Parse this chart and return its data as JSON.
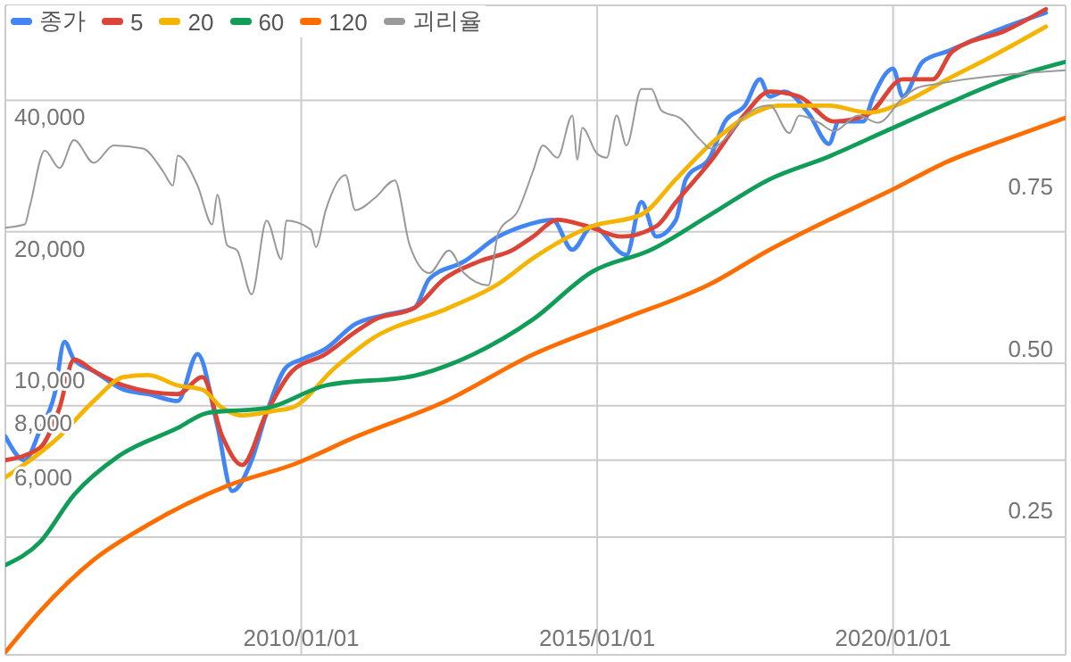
{
  "chart_data": {
    "type": "line",
    "log": "y",
    "grid": true,
    "legend": "top left",
    "marker": "none",
    "line_style": "solid",
    "xlim": [
      "2005-01-01",
      "2022-12-01"
    ],
    "xticks": [
      {
        "value": "2005-01-01",
        "label": null
      },
      {
        "value": "2010-01-01",
        "label": "2010/01/01"
      },
      {
        "value": "2015-01-01",
        "label": "2015/01/01"
      },
      {
        "value": "2020-01-01",
        "label": "2020/01/01"
      }
    ],
    "ylim": [
      2150,
      66000
    ],
    "yticks": [
      {
        "value": 4000,
        "label": null
      },
      {
        "value": 6000,
        "label": "6,000"
      },
      {
        "value": 8000,
        "label": "8,000"
      },
      {
        "value": 10000,
        "label": "10,000"
      },
      {
        "value": 20000,
        "label": "20,000"
      },
      {
        "value": 40000,
        "label": "40,000"
      }
    ],
    "y2lim": [
      0.026,
      1.028
    ],
    "y2ticks": [
      {
        "value": 0.25,
        "label": "0.25"
      },
      {
        "value": 0.5,
        "label": "0.50"
      },
      {
        "value": 0.75,
        "label": "0.75"
      }
    ],
    "series": [
      {
        "name": "종가",
        "color": "#4285f4",
        "x": [
          "2005-01",
          "2005-05",
          "2005-08",
          "2005-11",
          "2006-01",
          "2006-03",
          "2006-07",
          "2007-01",
          "2007-06",
          "2007-12",
          "2008-04",
          "2008-08",
          "2008-11",
          "2009-03",
          "2009-06",
          "2009-10",
          "2010-01",
          "2010-06",
          "2010-12",
          "2011-06",
          "2011-12",
          "2012-03",
          "2012-10",
          "2013-05",
          "2013-10",
          "2014-04",
          "2014-08",
          "2014-12",
          "2015-07",
          "2015-10",
          "2016-01",
          "2016-05",
          "2016-07",
          "2016-12",
          "2017-03",
          "2017-07",
          "2017-10",
          "2017-12",
          "2018-03",
          "2018-08",
          "2018-12",
          "2019-02",
          "2019-07",
          "2019-09",
          "2020-01",
          "2020-03",
          "2020-07",
          "2020-12",
          "2021-12",
          "2022-08"
        ],
        "values": [
          6800,
          6000,
          7000,
          8500,
          11200,
          10200,
          9600,
          8700,
          8500,
          8200,
          10500,
          7200,
          5100,
          6000,
          7700,
          9800,
          10200,
          10800,
          12300,
          12900,
          13400,
          15600,
          17100,
          19500,
          20600,
          21300,
          18200,
          20600,
          17700,
          23400,
          19500,
          21300,
          26400,
          29800,
          35800,
          38900,
          44700,
          40800,
          41900,
          37200,
          31800,
          35800,
          35800,
          40800,
          47300,
          40800,
          49000,
          51800,
          59000,
          63500
        ]
      },
      {
        "name": "5",
        "color": "#db4437",
        "x": [
          "2005-01",
          "2005-08",
          "2005-12",
          "2006-03",
          "2006-07",
          "2007-01",
          "2007-12",
          "2008-05",
          "2008-09",
          "2009-01",
          "2009-06",
          "2009-11",
          "2010-06",
          "2010-12",
          "2011-04",
          "2011-12",
          "2012-06",
          "2013-01",
          "2013-08",
          "2013-12",
          "2014-05",
          "2014-11",
          "2015-06",
          "2016-01",
          "2016-05",
          "2016-12",
          "2017-07",
          "2017-12",
          "2018-06",
          "2019-01",
          "2019-08",
          "2020-03",
          "2020-09",
          "2021-01",
          "2021-12",
          "2022-08"
        ],
        "values": [
          6000,
          6400,
          7900,
          10200,
          9600,
          8900,
          8500,
          9300,
          6800,
          5850,
          7700,
          9550,
          10500,
          11800,
          12600,
          13400,
          15600,
          17100,
          18200,
          19500,
          21300,
          20600,
          19500,
          20600,
          23400,
          29000,
          37200,
          41900,
          40800,
          35800,
          37200,
          44700,
          44700,
          51800,
          57900,
          64700
        ]
      },
      {
        "name": "20",
        "color": "#f4b400",
        "x": [
          "2005-01",
          "2005-12",
          "2006-07",
          "2007-01",
          "2007-06",
          "2007-12",
          "2008-05",
          "2008-09",
          "2009-01",
          "2009-08",
          "2009-11",
          "2010-08",
          "2011-03",
          "2012-07",
          "2013-05",
          "2013-12",
          "2014-12",
          "2015-10",
          "2016-05",
          "2016-12",
          "2017-07",
          "2018-02",
          "2018-12",
          "2019-08",
          "2020-04",
          "2020-12",
          "2021-09",
          "2022-08"
        ],
        "values": [
          5480,
          6800,
          8200,
          9300,
          9400,
          8900,
          8700,
          7900,
          7600,
          7800,
          7900,
          9800,
          11300,
          13400,
          15200,
          17400,
          20600,
          21900,
          26400,
          31750,
          36500,
          38900,
          38900,
          37500,
          40000,
          44700,
          50400,
          59000
        ]
      },
      {
        "name": "60",
        "color": "#0f9d58",
        "x": [
          "2005-01",
          "2005-08",
          "2006-03",
          "2006-12",
          "2007-12",
          "2008-06",
          "2009-06",
          "2010-06",
          "2011-12",
          "2012-12",
          "2013-12",
          "2014-12",
          "2015-12",
          "2016-12",
          "2017-12",
          "2018-12",
          "2019-12",
          "2020-12",
          "2021-12",
          "2022-12"
        ],
        "values": [
          3450,
          3890,
          5000,
          6130,
          7110,
          7700,
          7900,
          8900,
          9370,
          10500,
          12600,
          16200,
          18200,
          21900,
          26400,
          29750,
          34200,
          39300,
          44700,
          49000
        ]
      },
      {
        "name": "120",
        "color": "#ff6d00",
        "x": [
          "2005-01",
          "2005-08",
          "2006-07",
          "2007-06",
          "2008-10",
          "2009-12",
          "2010-12",
          "2012-06",
          "2013-12",
          "2015-06",
          "2016-12",
          "2017-12",
          "2018-12",
          "2019-12",
          "2020-12",
          "2021-12",
          "2022-12"
        ],
        "values": [
          2180,
          2700,
          3550,
          4270,
          5240,
          5900,
          6780,
          8160,
          10470,
          12600,
          15200,
          18200,
          21300,
          24700,
          28950,
          32600,
          36500
        ]
      },
      {
        "name": "괴리율",
        "color": "#999999",
        "axis": "y2",
        "x": [
          "2005-01",
          "2005-05",
          "2005-06",
          "2005-09",
          "2005-12",
          "2006-03",
          "2006-07",
          "2006-11",
          "2007-05",
          "2007-09",
          "2007-11",
          "2007-12",
          "2008-04",
          "2008-07",
          "2008-08",
          "2008-10",
          "2008-12",
          "2009-03",
          "2009-06",
          "2009-09",
          "2009-10",
          "2010-03",
          "2010-04",
          "2010-06",
          "2010-10",
          "2010-12",
          "2011-04",
          "2011-08",
          "2011-11",
          "2012-03",
          "2012-07",
          "2012-10",
          "2013-03",
          "2013-05",
          "2013-09",
          "2013-12",
          "2014-02",
          "2014-05",
          "2014-08",
          "2014-09",
          "2014-10",
          "2015-01",
          "2015-03",
          "2015-05",
          "2015-07",
          "2015-10",
          "2015-12",
          "2016-02",
          "2016-06",
          "2016-10",
          "2016-12",
          "2017-04",
          "2017-07",
          "2017-12",
          "2018-04",
          "2018-06",
          "2018-10",
          "2019-01",
          "2019-06",
          "2019-10",
          "2020-03",
          "2020-06",
          "2020-10",
          "2022-12"
        ],
        "values": [
          0.685,
          0.69,
          0.718,
          0.804,
          0.777,
          0.82,
          0.785,
          0.812,
          0.807,
          0.772,
          0.75,
          0.796,
          0.75,
          0.69,
          0.736,
          0.658,
          0.65,
          0.582,
          0.696,
          0.636,
          0.696,
          0.682,
          0.655,
          0.712,
          0.766,
          0.712,
          0.731,
          0.758,
          0.658,
          0.615,
          0.65,
          0.615,
          0.596,
          0.677,
          0.712,
          0.772,
          0.812,
          0.793,
          0.858,
          0.79,
          0.839,
          0.799,
          0.793,
          0.858,
          0.812,
          0.899,
          0.899,
          0.866,
          0.853,
          0.82,
          0.807,
          0.831,
          0.858,
          0.874,
          0.831,
          0.858,
          0.847,
          0.834,
          0.858,
          0.847,
          0.885,
          0.901,
          0.907,
          0.928
        ]
      }
    ]
  }
}
